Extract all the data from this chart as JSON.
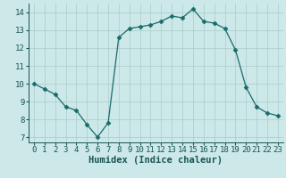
{
  "x": [
    0,
    1,
    2,
    3,
    4,
    5,
    6,
    7,
    8,
    9,
    10,
    11,
    12,
    13,
    14,
    15,
    16,
    17,
    18,
    19,
    20,
    21,
    22,
    23
  ],
  "y": [
    10.0,
    9.7,
    9.4,
    8.7,
    8.5,
    7.7,
    7.0,
    7.8,
    12.6,
    13.1,
    13.2,
    13.3,
    13.5,
    13.8,
    13.7,
    14.2,
    13.5,
    13.4,
    13.1,
    11.9,
    9.8,
    8.7,
    8.35,
    8.2
  ],
  "line_color": "#1a6b6b",
  "marker": "D",
  "marker_size": 2.5,
  "bg_color": "#cce8e8",
  "grid_color": "#aacccc",
  "xlabel": "Humidex (Indice chaleur)",
  "xlabel_fontsize": 7.5,
  "tick_fontsize": 6.5,
  "ylim": [
    6.7,
    14.5
  ],
  "xlim": [
    -0.5,
    23.5
  ],
  "yticks": [
    7,
    8,
    9,
    10,
    11,
    12,
    13,
    14
  ],
  "xticks": [
    0,
    1,
    2,
    3,
    4,
    5,
    6,
    7,
    8,
    9,
    10,
    11,
    12,
    13,
    14,
    15,
    16,
    17,
    18,
    19,
    20,
    21,
    22,
    23
  ],
  "xtick_labels": [
    "0",
    "1",
    "2",
    "3",
    "4",
    "5",
    "6",
    "7",
    "8",
    "9",
    "10",
    "11",
    "12",
    "13",
    "14",
    "15",
    "16",
    "17",
    "18",
    "19",
    "20",
    "21",
    "22",
    "23"
  ]
}
